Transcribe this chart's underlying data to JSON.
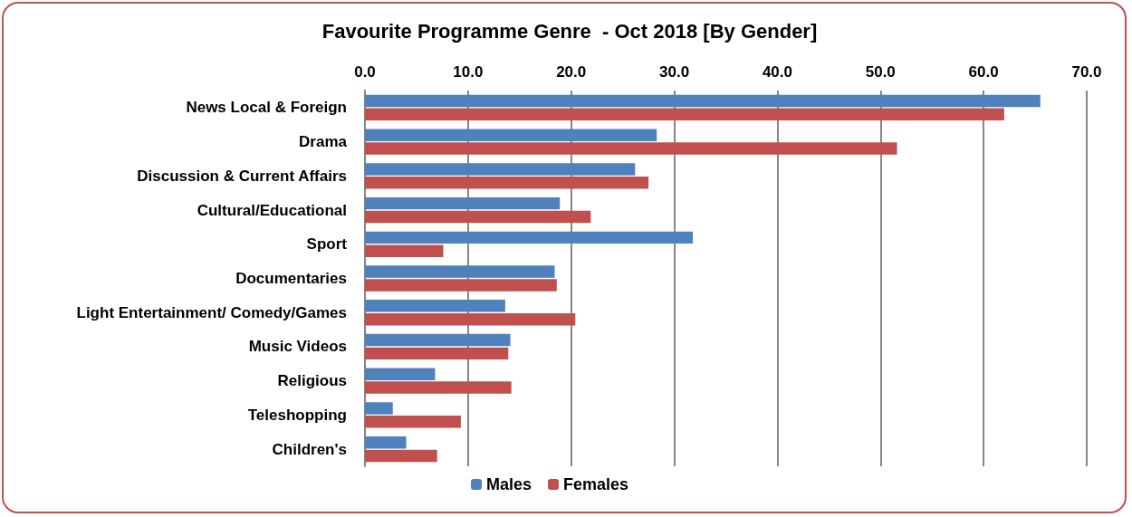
{
  "chart_data": {
    "type": "bar",
    "orientation": "horizontal",
    "title": "Favourite Programme Genre  - Oct 2018 [By Gender]",
    "categories": [
      "News Local & Foreign",
      "Drama",
      "Discussion & Current Affairs",
      "Cultural/Educational",
      "Sport",
      "Documentaries",
      "Light Entertainment/ Comedy/Games",
      "Music Videos",
      "Religious",
      "Teleshopping",
      "Children's"
    ],
    "series": [
      {
        "name": "Males",
        "color": "#4f81bd",
        "values": [
          65.5,
          28.3,
          26.2,
          18.9,
          31.8,
          18.4,
          13.6,
          14.1,
          6.8,
          2.7,
          4.0
        ]
      },
      {
        "name": "Females",
        "color": "#c0504d",
        "values": [
          62.0,
          51.6,
          27.5,
          21.9,
          7.6,
          18.6,
          20.4,
          13.9,
          14.2,
          9.3,
          7.0
        ]
      }
    ],
    "xlim": [
      0,
      70
    ],
    "xticks": [
      {
        "value": 0,
        "label": "0.0"
      },
      {
        "value": 10,
        "label": "10.0"
      },
      {
        "value": 20,
        "label": "20.0"
      },
      {
        "value": 30,
        "label": "30.0"
      },
      {
        "value": 40,
        "label": "40.0"
      },
      {
        "value": 50,
        "label": "50.0"
      },
      {
        "value": 60,
        "label": "60.0"
      },
      {
        "value": 70,
        "label": "70.0"
      }
    ],
    "grid": "x",
    "legend": "bottom"
  }
}
